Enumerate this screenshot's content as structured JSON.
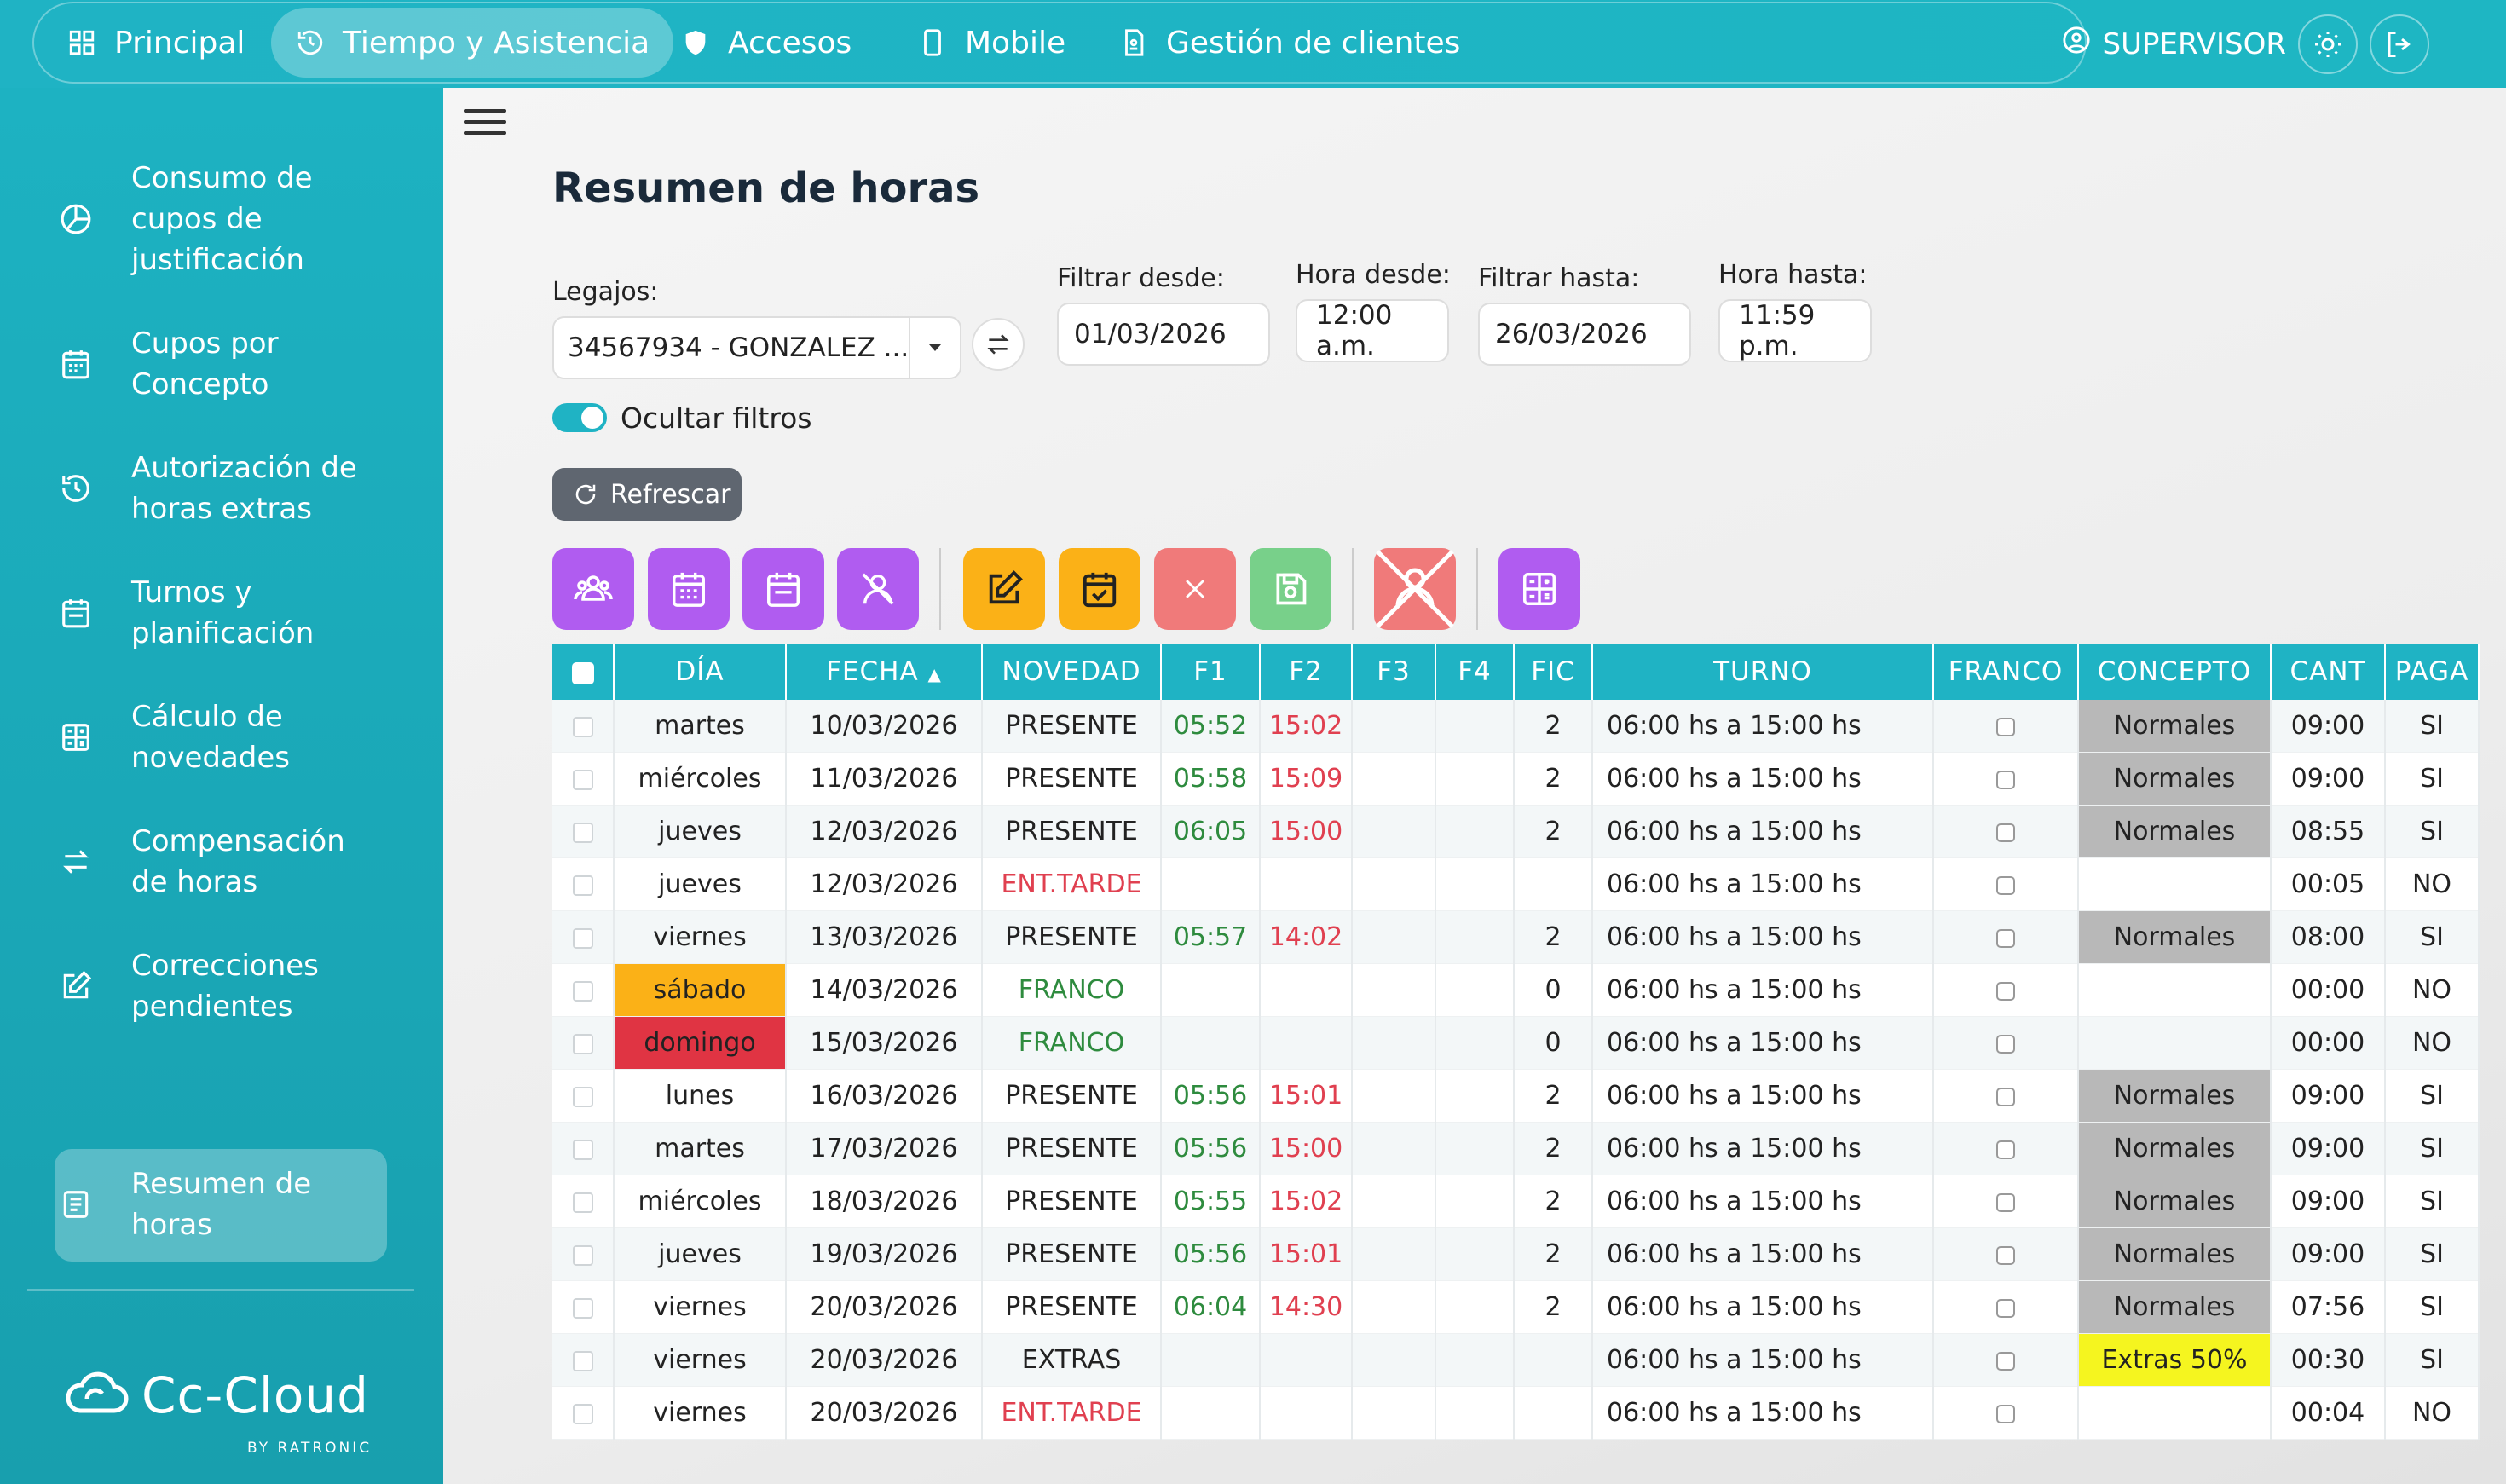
{
  "topnav": {
    "items": [
      {
        "label": "Principal",
        "icon": "grid-icon"
      },
      {
        "label": "Tiempo y Asistencia",
        "icon": "history-icon",
        "active": true
      },
      {
        "label": "Accesos",
        "icon": "shield-icon"
      },
      {
        "label": "Mobile",
        "icon": "mobile-icon"
      },
      {
        "label": "Gestión de clientes",
        "icon": "document-icon"
      }
    ],
    "user_label": "SUPERVISOR"
  },
  "sidebar": {
    "items": [
      {
        "label": "Consumo de cupos de justificación",
        "icon": "pie-chart-icon"
      },
      {
        "label": "Cupos por Concepto",
        "icon": "calendar-icon"
      },
      {
        "label": "Autorización de horas extras",
        "icon": "history-icon"
      },
      {
        "label": "Turnos y planificación",
        "icon": "calendar-icon"
      },
      {
        "label": "Cálculo de novedades",
        "icon": "calculator-icon"
      },
      {
        "label": "Compensación de horas",
        "icon": "swap-icon"
      },
      {
        "label": "Correcciones pendientes",
        "icon": "edit-icon"
      },
      {
        "label": "Resumen de horas",
        "icon": "list-icon",
        "active": true
      }
    ],
    "brand": {
      "name": "Cc-Cloud",
      "sub": "BY RATRONIC"
    }
  },
  "main": {
    "title": "Resumen de horas",
    "filters": {
      "legajos_label": "Legajos:",
      "legajos_value": "34567934 - GONZALEZ ...",
      "desde_label": "Filtrar desde:",
      "desde_value": "01/03/2026",
      "hora_desde_label": "Hora desde:",
      "hora_desde_value": "12:00 a.m.",
      "hasta_label": "Filtrar hasta:",
      "hasta_value": "26/03/2026",
      "hora_hasta_label": "Hora hasta:",
      "hora_hasta_value": "11:59 p.m."
    },
    "toggle_label": "Ocultar filtros",
    "refresh_label": "Refrescar",
    "toolbar": [
      {
        "name": "users-icon",
        "color": "#b05cf0"
      },
      {
        "name": "calendar-grid-icon",
        "color": "#b05cf0"
      },
      {
        "name": "calendar-icon",
        "color": "#b05cf0"
      },
      {
        "name": "user-off-icon",
        "color": "#b05cf0"
      },
      {
        "name": "edit-icon",
        "color": "#fbb117"
      },
      {
        "name": "calendar-check-icon",
        "color": "#fbb117"
      },
      {
        "name": "close-icon",
        "color": "#f07a7a"
      },
      {
        "name": "save-icon",
        "color": "#78d08a"
      },
      {
        "name": "user-off-icon",
        "color": "#f07a7a"
      },
      {
        "name": "calculator-icon",
        "color": "#b05cf0"
      }
    ]
  },
  "table": {
    "headers": [
      "",
      "DÍA",
      "FECHA",
      "NOVEDAD",
      "F1",
      "F2",
      "F3",
      "F4",
      "FIC",
      "TURNO",
      "FRANCO",
      "CONCEPTO",
      "CANT",
      "PAGA"
    ],
    "rows": [
      {
        "dia": "martes",
        "fecha": "10/03/2026",
        "novedad": "PRESENTE",
        "f1": "05:52",
        "f2": "15:02",
        "fic": "2",
        "turno": "06:00 hs a 15:00 hs",
        "concepto": "Normales",
        "cant": "09:00",
        "paga": "SI"
      },
      {
        "dia": "miércoles",
        "fecha": "11/03/2026",
        "novedad": "PRESENTE",
        "f1": "05:58",
        "f2": "15:09",
        "fic": "2",
        "turno": "06:00 hs a 15:00 hs",
        "concepto": "Normales",
        "cant": "09:00",
        "paga": "SI"
      },
      {
        "dia": "jueves",
        "fecha": "12/03/2026",
        "novedad": "PRESENTE",
        "f1": "06:05",
        "f2": "15:00",
        "fic": "2",
        "turno": "06:00 hs a 15:00 hs",
        "concepto": "Normales",
        "cant": "08:55",
        "paga": "SI"
      },
      {
        "dia": "jueves",
        "fecha": "12/03/2026",
        "novedad": "ENT.TARDE",
        "f1": "",
        "f2": "",
        "fic": "",
        "turno": "06:00 hs a 15:00 hs",
        "concepto": "",
        "cant": "00:05",
        "paga": "NO"
      },
      {
        "dia": "viernes",
        "fecha": "13/03/2026",
        "novedad": "PRESENTE",
        "f1": "05:57",
        "f2": "14:02",
        "fic": "2",
        "turno": "06:00 hs a 15:00 hs",
        "concepto": "Normales",
        "cant": "08:00",
        "paga": "SI"
      },
      {
        "dia": "sábado",
        "fecha": "14/03/2026",
        "novedad": "FRANCO",
        "f1": "",
        "f2": "",
        "fic": "0",
        "turno": "06:00 hs a 15:00 hs",
        "concepto": "",
        "cant": "00:00",
        "paga": "NO"
      },
      {
        "dia": "domingo",
        "fecha": "15/03/2026",
        "novedad": "FRANCO",
        "f1": "",
        "f2": "",
        "fic": "0",
        "turno": "06:00 hs a 15:00 hs",
        "concepto": "",
        "cant": "00:00",
        "paga": "NO"
      },
      {
        "dia": "lunes",
        "fecha": "16/03/2026",
        "novedad": "PRESENTE",
        "f1": "05:56",
        "f2": "15:01",
        "fic": "2",
        "turno": "06:00 hs a 15:00 hs",
        "concepto": "Normales",
        "cant": "09:00",
        "paga": "SI"
      },
      {
        "dia": "martes",
        "fecha": "17/03/2026",
        "novedad": "PRESENTE",
        "f1": "05:56",
        "f2": "15:00",
        "fic": "2",
        "turno": "06:00 hs a 15:00 hs",
        "concepto": "Normales",
        "cant": "09:00",
        "paga": "SI"
      },
      {
        "dia": "miércoles",
        "fecha": "18/03/2026",
        "novedad": "PRESENTE",
        "f1": "05:55",
        "f2": "15:02",
        "fic": "2",
        "turno": "06:00 hs a 15:00 hs",
        "concepto": "Normales",
        "cant": "09:00",
        "paga": "SI"
      },
      {
        "dia": "jueves",
        "fecha": "19/03/2026",
        "novedad": "PRESENTE",
        "f1": "05:56",
        "f2": "15:01",
        "fic": "2",
        "turno": "06:00 hs a 15:00 hs",
        "concepto": "Normales",
        "cant": "09:00",
        "paga": "SI"
      },
      {
        "dia": "viernes",
        "fecha": "20/03/2026",
        "novedad": "PRESENTE",
        "f1": "06:04",
        "f2": "14:30",
        "fic": "2",
        "turno": "06:00 hs a 15:00 hs",
        "concepto": "Normales",
        "cant": "07:56",
        "paga": "SI"
      },
      {
        "dia": "viernes",
        "fecha": "20/03/2026",
        "novedad": "EXTRAS",
        "f1": "",
        "f2": "",
        "fic": "",
        "turno": "06:00 hs a 15:00 hs",
        "concepto": "Extras 50%",
        "cant": "00:30",
        "paga": "SI"
      },
      {
        "dia": "viernes",
        "fecha": "20/03/2026",
        "novedad": "ENT.TARDE",
        "f1": "",
        "f2": "",
        "fic": "",
        "turno": "06:00 hs a 15:00 hs",
        "concepto": "",
        "cant": "00:04",
        "paga": "NO"
      }
    ]
  },
  "colors": {
    "accent": "#1fb3c4",
    "saturday": "#fbb117",
    "sunday": "#e03443",
    "concept_normal": "#b8b8b8",
    "concept_extra": "#f5f51f",
    "in_time": "#2e8b3e",
    "out_time": "#e04050"
  }
}
